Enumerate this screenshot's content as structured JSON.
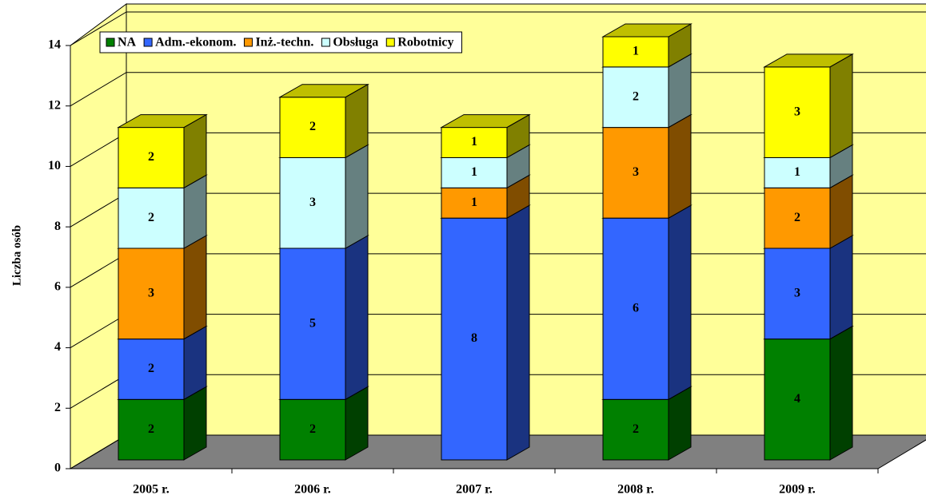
{
  "chart_data": {
    "type": "bar3d_stacked",
    "y_label": "Liczba osób",
    "categories": [
      "2005 r.",
      "2006 r.",
      "2007 r.",
      "2008 r.",
      "2009 r."
    ],
    "series": [
      {
        "name": "NA",
        "color": "#008000",
        "values": [
          2,
          2,
          null,
          2,
          4
        ]
      },
      {
        "name": "Adm.-ekonom.",
        "color": "#3366ff",
        "values": [
          2,
          5,
          8,
          6,
          3
        ]
      },
      {
        "name": "Inż.-techn.",
        "color": "#ff9900",
        "values": [
          3,
          null,
          1,
          3,
          2
        ]
      },
      {
        "name": "Obsługa",
        "color": "#ccffff",
        "values": [
          2,
          3,
          1,
          2,
          1
        ]
      },
      {
        "name": "Robotnicy",
        "color": "#ffff00",
        "values": [
          2,
          2,
          1,
          1,
          3
        ]
      }
    ],
    "ylim": [
      0,
      14
    ],
    "yticks": [
      0,
      2,
      4,
      6,
      8,
      10,
      12,
      14
    ],
    "grid": true,
    "legend": "top",
    "wall_color": "#ffff99",
    "floor_color": "#808080"
  }
}
